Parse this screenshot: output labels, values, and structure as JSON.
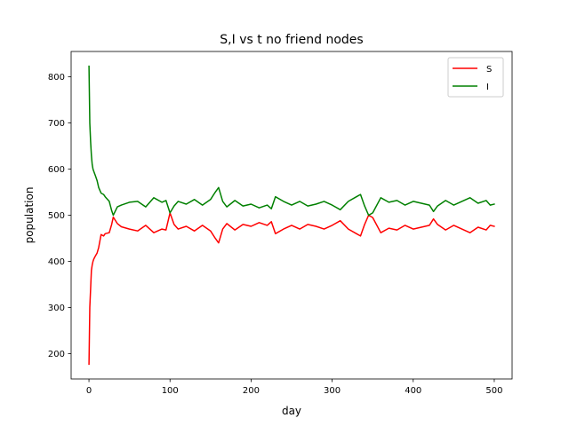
{
  "chart_data": {
    "type": "line",
    "title": "S,I vs t no friend nodes",
    "xlabel": "day",
    "ylabel": "population",
    "xlim": [
      -22,
      522
    ],
    "ylim": [
      145,
      855
    ],
    "xticks": [
      0,
      100,
      200,
      300,
      400,
      500
    ],
    "yticks": [
      200,
      300,
      400,
      500,
      600,
      700,
      800
    ],
    "grid": false,
    "legend_position": "top-right",
    "colors": {
      "S": "#ff0000",
      "I": "#008000"
    },
    "x": [
      0,
      1,
      2,
      3,
      4,
      5,
      6,
      8,
      10,
      12,
      15,
      18,
      20,
      25,
      28,
      30,
      35,
      40,
      50,
      60,
      70,
      80,
      90,
      95,
      100,
      105,
      110,
      120,
      130,
      140,
      150,
      155,
      160,
      165,
      170,
      180,
      190,
      200,
      210,
      220,
      225,
      230,
      240,
      250,
      260,
      270,
      280,
      290,
      300,
      310,
      320,
      330,
      335,
      340,
      345,
      350,
      360,
      370,
      380,
      390,
      400,
      410,
      420,
      425,
      430,
      440,
      450,
      460,
      470,
      480,
      490,
      495,
      500
    ],
    "series": [
      {
        "name": "S",
        "values": [
          177,
          300,
          340,
          380,
          392,
          400,
          405,
          412,
          418,
          430,
          458,
          455,
          460,
          462,
          480,
          496,
          482,
          475,
          470,
          466,
          478,
          462,
          470,
          468,
          505,
          480,
          470,
          476,
          466,
          478,
          466,
          452,
          440,
          470,
          482,
          468,
          480,
          476,
          484,
          478,
          486,
          460,
          470,
          478,
          470,
          480,
          476,
          470,
          478,
          488,
          470,
          460,
          455,
          480,
          500,
          495,
          462,
          472,
          468,
          478,
          470,
          474,
          478,
          492,
          480,
          468,
          478,
          470,
          462,
          474,
          468,
          478,
          476
        ]
      },
      {
        "name": "I",
        "values": [
          823,
          700,
          660,
          630,
          610,
          600,
          595,
          585,
          575,
          560,
          548,
          545,
          540,
          530,
          510,
          500,
          518,
          522,
          528,
          530,
          518,
          538,
          528,
          532,
          505,
          520,
          530,
          524,
          534,
          522,
          534,
          548,
          560,
          530,
          518,
          532,
          520,
          524,
          516,
          522,
          514,
          540,
          530,
          522,
          530,
          520,
          524,
          530,
          522,
          512,
          530,
          540,
          545,
          520,
          500,
          505,
          538,
          528,
          532,
          522,
          530,
          526,
          522,
          508,
          520,
          532,
          522,
          530,
          538,
          526,
          532,
          522,
          524
        ]
      }
    ]
  }
}
